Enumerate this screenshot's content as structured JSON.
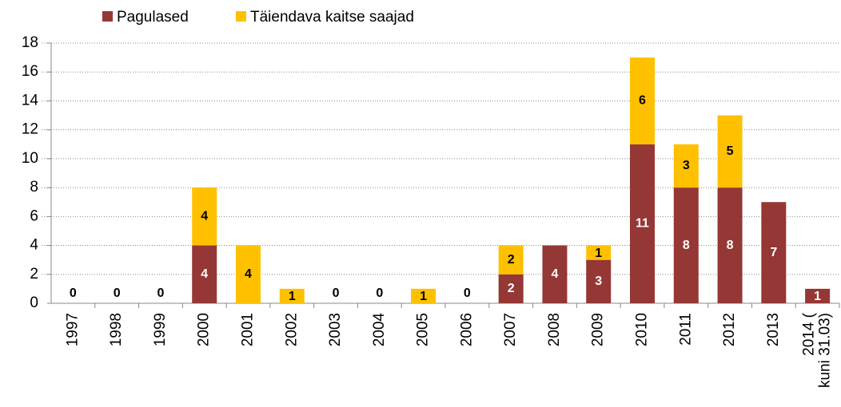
{
  "chart_data": {
    "type": "stacked_bar",
    "categories": [
      "1997",
      "1998",
      "1999",
      "2000",
      "2001",
      "2002",
      "2003",
      "2004",
      "2005",
      "2006",
      "2007",
      "2008",
      "2009",
      "2010",
      "2011",
      "2012",
      "2013",
      "2014 (kuni 31.03)"
    ],
    "series": [
      {
        "name": "Pagulased",
        "color": "#953735",
        "values": [
          0,
          0,
          0,
          4,
          0,
          0,
          0,
          0,
          0,
          0,
          2,
          4,
          3,
          11,
          8,
          8,
          7,
          1
        ]
      },
      {
        "name": "Täiendava kaitse saajad",
        "color": "#FFC000",
        "values": [
          0,
          0,
          0,
          4,
          4,
          1,
          0,
          0,
          1,
          0,
          2,
          0,
          1,
          6,
          3,
          5,
          0,
          0
        ]
      }
    ],
    "ylim": [
      0,
      18
    ],
    "yticks": [
      0,
      2,
      4,
      6,
      8,
      10,
      12,
      14,
      16,
      18
    ],
    "grid": true,
    "legend": "top"
  }
}
